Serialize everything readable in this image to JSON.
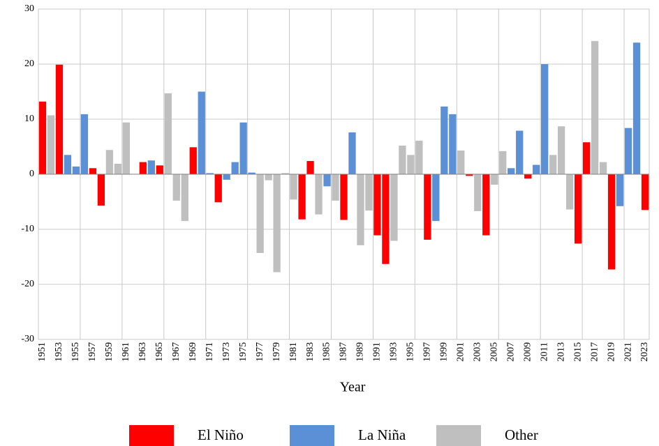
{
  "chart_data": {
    "type": "bar",
    "x_label": "Year",
    "categories": [
      "1951",
      null,
      "1953",
      null,
      "1955",
      null,
      "1957",
      null,
      "1959",
      null,
      "1961",
      null,
      "1963",
      null,
      "1965",
      null,
      "1967",
      null,
      "1969",
      null,
      "1971",
      null,
      "1973",
      null,
      "1975",
      null,
      "1977",
      null,
      "1979",
      null,
      "1981",
      null,
      "1983",
      null,
      "1985",
      null,
      "1987",
      null,
      "1989",
      null,
      "1991",
      null,
      "1993",
      null,
      "1995",
      null,
      "1997",
      null,
      "1999",
      null,
      "2001",
      null,
      "2003",
      null,
      "2005",
      null,
      "2007",
      null,
      "2009",
      null,
      "2011",
      null,
      "2013",
      null,
      "2015",
      null,
      "2017",
      null,
      "2019",
      null,
      "2021",
      null,
      "2023"
    ],
    "series": [
      {
        "name": "El Niño",
        "color": "#ff0000",
        "values": [
          13.2,
          null,
          19.9,
          null,
          null,
          null,
          1.1,
          -5.7,
          null,
          null,
          null,
          null,
          2.2,
          null,
          1.6,
          null,
          null,
          null,
          4.9,
          null,
          null,
          -5.1,
          null,
          null,
          null,
          null,
          null,
          null,
          null,
          null,
          null,
          -8.2,
          2.4,
          null,
          null,
          null,
          -8.3,
          null,
          null,
          null,
          -11.1,
          -16.3,
          null,
          null,
          null,
          null,
          -11.9,
          null,
          null,
          null,
          null,
          -0.3,
          null,
          -11.1,
          null,
          null,
          null,
          null,
          -0.8,
          null,
          null,
          null,
          null,
          null,
          -12.6,
          5.8,
          null,
          null,
          -17.3,
          null,
          null,
          null,
          -6.5
        ]
      },
      {
        "name": "La Niña",
        "color": "#5b8fd6",
        "values": [
          null,
          null,
          null,
          3.5,
          1.4,
          10.9,
          null,
          null,
          null,
          null,
          null,
          null,
          null,
          2.5,
          null,
          null,
          null,
          null,
          null,
          15,
          0.2,
          null,
          -1,
          2.2,
          9.4,
          0.3,
          null,
          null,
          null,
          null,
          null,
          null,
          null,
          null,
          -2.2,
          null,
          null,
          7.6,
          null,
          null,
          null,
          null,
          null,
          null,
          null,
          null,
          null,
          -8.5,
          12.3,
          10.9,
          null,
          null,
          null,
          null,
          null,
          null,
          1.1,
          7.9,
          null,
          1.7,
          20,
          null,
          null,
          null,
          null,
          null,
          null,
          null,
          null,
          -5.8,
          8.4,
          23.9,
          null
        ]
      },
      {
        "name": "Other",
        "color": "#bfbfbf",
        "values": [
          null,
          10.7,
          null,
          null,
          null,
          null,
          null,
          null,
          4.4,
          1.9,
          9.4,
          0,
          null,
          null,
          null,
          14.7,
          -4.8,
          -8.5,
          null,
          null,
          null,
          null,
          null,
          null,
          null,
          null,
          -14.3,
          -1.1,
          -17.8,
          0.2,
          -4.6,
          null,
          null,
          -7.3,
          null,
          -4.8,
          null,
          null,
          -12.9,
          -6.6,
          null,
          null,
          -12.1,
          5.2,
          3.5,
          6.1,
          null,
          null,
          null,
          null,
          4.3,
          null,
          -6.7,
          null,
          -1.9,
          4.2,
          null,
          null,
          null,
          null,
          null,
          3.5,
          8.7,
          -6.4,
          null,
          null,
          24.2,
          2.2,
          null,
          null,
          null,
          null,
          null
        ]
      }
    ],
    "ylim": [
      -30,
      30
    ],
    "yticks": [
      -30,
      -20,
      -10,
      0,
      10,
      20,
      30
    ],
    "grid": true
  }
}
